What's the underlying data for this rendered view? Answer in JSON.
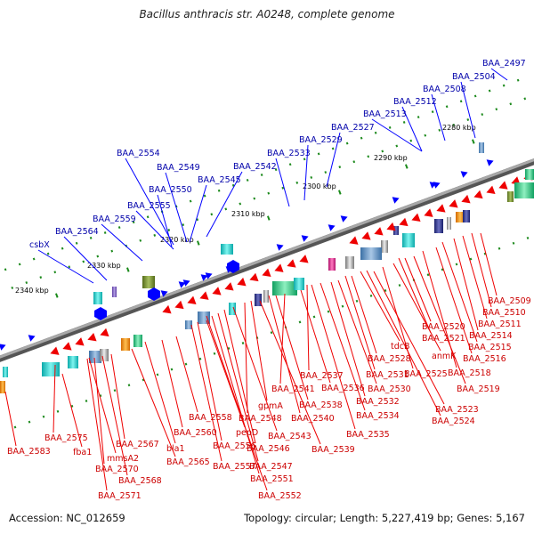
{
  "title": "Bacillus anthracis str. A0248, complete genome",
  "footer": {
    "accession": "Accession: NC_012659",
    "summary": "Topology: circular; Length: 5,227,419 bp; Genes: 5,167"
  },
  "colors": {
    "backbone": "#7a7a7a",
    "forward_feature": "#0000ff",
    "reverse_feature": "#ee0000",
    "forward_label": "#0000aa",
    "reverse_label": "#cc0000",
    "tick": "#1a8a1a",
    "ruler_label": "#000000",
    "orf_dots": "#1d8a1d"
  },
  "ruler_labels": [
    "2280 kbp",
    "2290 kbp",
    "2300 kbp",
    "2310 kbp",
    "2320 kbp",
    "2330 kbp",
    "2340 kbp"
  ],
  "forward_genes": [
    "BAA_2497",
    "BAA_2504",
    "BAA_2508",
    "BAA_2512",
    "BAA_2513",
    "BAA_2527",
    "BAA_2529",
    "BAA_2533",
    "BAA_2542",
    "BAA_2545",
    "BAA_2549",
    "BAA_2550",
    "BAA_2554",
    "BAA_2555",
    "BAA_2559",
    "BAA_2564",
    "csbX"
  ],
  "reverse_genes": [
    "BAA_2509",
    "BAA_2510",
    "BAA_2511",
    "BAA_2514",
    "BAA_2515",
    "BAA_2516",
    "BAA_2518",
    "BAA_2519",
    "BAA_2520",
    "BAA_2521",
    "anmK",
    "BAA_2525",
    "BAA_2523",
    "BAA_2524",
    "tdcB",
    "BAA_2528",
    "BAA_2531",
    "BAA_2530",
    "BAA_2532",
    "BAA_2534",
    "BAA_2535",
    "BAA_2537",
    "BAA_2536",
    "BAA_2541",
    "BAA_2538",
    "BAA_2540",
    "BAA_2539",
    "gpmA",
    "BAA_2548",
    "BAA_2543",
    "BAA_2546",
    "BAA_2547",
    "BAA_2551",
    "BAA_2552",
    "pepD",
    "BAA_2556",
    "BAA_2557",
    "BAA_2558",
    "BAA_2560",
    "bla1",
    "BAA_2565",
    "BAA_2567",
    "BAA_2568",
    "BAA_2570",
    "mmsA2",
    "BAA_2571",
    "BAA_2575",
    "fba1",
    "BAA_2583"
  ]
}
